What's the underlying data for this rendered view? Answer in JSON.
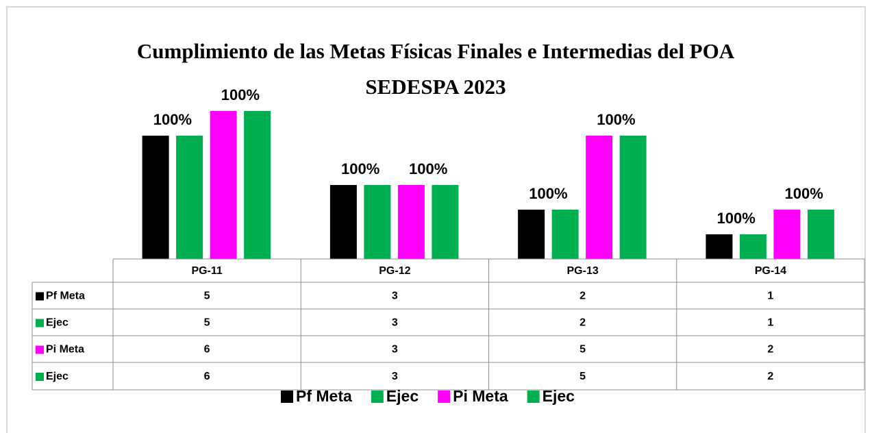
{
  "chart_data": {
    "type": "bar",
    "title": "Cumplimiento de las Metas Físicas Finales e Intermedias del POA",
    "subtitle": "SEDESPA 2023",
    "categories": [
      "PG-11",
      "PG-12",
      "PG-13",
      "PG-14"
    ],
    "series": [
      {
        "name": "Pf Meta",
        "color": "#000000",
        "values": [
          5,
          3,
          2,
          1
        ]
      },
      {
        "name": "Ejec",
        "color": "#00b050",
        "values": [
          5,
          3,
          2,
          1
        ],
        "labels": [
          "100%",
          "100%",
          "100%",
          "100%"
        ]
      },
      {
        "name": "Pi Meta",
        "color": "#ff00ff",
        "values": [
          6,
          3,
          5,
          2
        ]
      },
      {
        "name": "Ejec",
        "color": "#00b050",
        "values": [
          6,
          3,
          5,
          2
        ],
        "labels": [
          "100%",
          "100%",
          "100%",
          "100%"
        ]
      }
    ],
    "ylim": [
      0,
      6
    ],
    "legend": "bottom"
  }
}
